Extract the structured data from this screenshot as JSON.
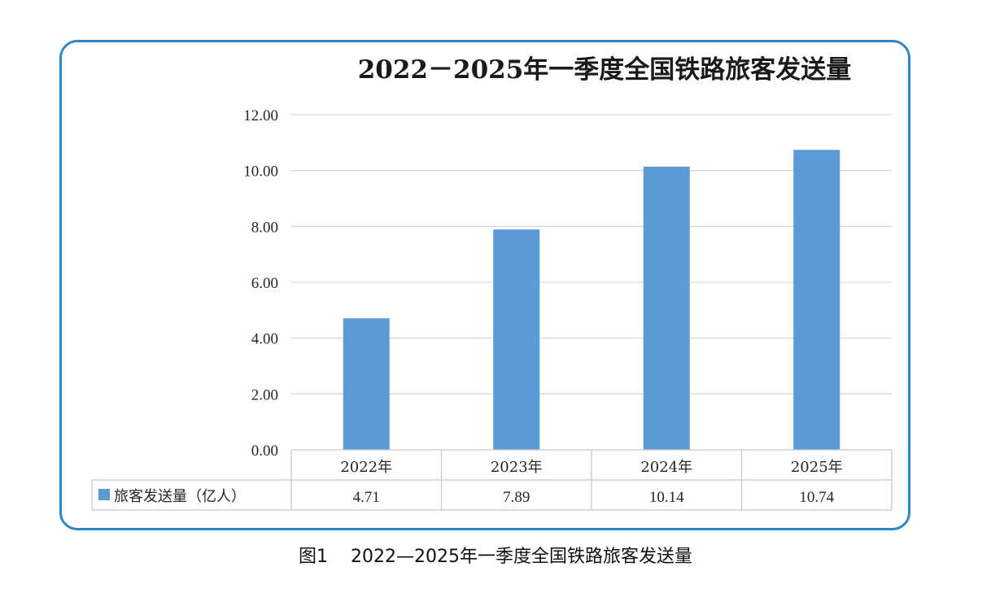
{
  "chart_data": {
    "type": "bar",
    "title": "2022－2025年一季度全国铁路旅客发送量",
    "categories": [
      "2022年",
      "2023年",
      "2024年",
      "2025年"
    ],
    "series": [
      {
        "name": "旅客发送量（亿人）",
        "values": [
          4.71,
          7.89,
          10.14,
          10.74
        ],
        "value_labels": [
          "4.71",
          "7.89",
          "10.14",
          "10.74"
        ],
        "color": "#5b9bd5"
      }
    ],
    "ylim": [
      0,
      12
    ],
    "yticks": [
      0,
      2,
      4,
      6,
      8,
      10,
      12
    ],
    "ytick_labels": [
      "0.00",
      "2.00",
      "4.00",
      "6.00",
      "8.00",
      "10.00",
      "12.00"
    ],
    "grid": true,
    "legend": "data-table-left",
    "data_table": true
  },
  "caption": "图1    2022—2025年一季度全国铁路旅客发送量",
  "frame_color": "#2f86c9"
}
